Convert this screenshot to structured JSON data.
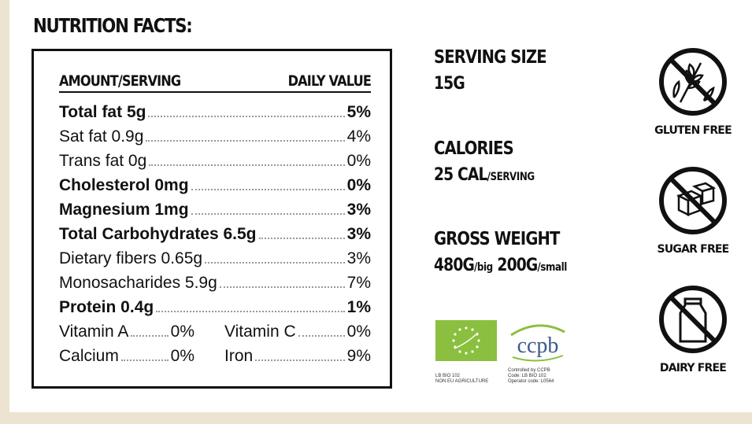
{
  "title": "NUTRITION FACTS:",
  "table": {
    "header_left": "AMOUNT/SERVING",
    "header_right": "DAILY VALUE",
    "rows": [
      {
        "label": "Total fat 5g",
        "value": "5%",
        "bold": true
      },
      {
        "label": "Sat fat 0.9g",
        "value": "4%",
        "bold": false
      },
      {
        "label": "Trans fat 0g",
        "value": "0%",
        "bold": false
      },
      {
        "label": "Cholesterol 0mg",
        "value": "0%",
        "bold": true
      },
      {
        "label": "Magnesium 1mg",
        "value": "3%",
        "bold": true
      },
      {
        "label": "Total Carbohydrates 6.5g",
        "value": "3%",
        "bold": true
      },
      {
        "label": "Dietary fibers 0.65g",
        "value": "3%",
        "bold": false
      },
      {
        "label": "Monosacharides 5.9g",
        "value": "7%",
        "bold": false
      },
      {
        "label": "Protein 0.4g",
        "value": "1%",
        "bold": true
      }
    ],
    "pairs": [
      [
        {
          "label": "Vitamin A",
          "value": "0%"
        },
        {
          "label": "Vitamin C",
          "value": "0%"
        }
      ],
      [
        {
          "label": "Calcium",
          "value": "0%"
        },
        {
          "label": "Iron",
          "value": "9%"
        }
      ]
    ]
  },
  "info": {
    "serving_size_label": "SERVING SIZE",
    "serving_size_value": "15G",
    "calories_label": "CALORIES",
    "calories_value": "25 CAL",
    "calories_unit": "/SERVING",
    "gross_weight_label": "GROSS WEIGHT",
    "gross_big": "480G",
    "gross_big_unit": "/big",
    "gross_small": "200G",
    "gross_small_unit": "/small"
  },
  "badges": [
    {
      "icon": "no-wheat-icon",
      "label": "GLUTEN FREE"
    },
    {
      "icon": "no-sugar-icon",
      "label": "SUGAR FREE"
    },
    {
      "icon": "no-milk-icon",
      "label": "DAIRY FREE"
    }
  ],
  "certifications": {
    "eu_text_1": "LB BIO 102",
    "eu_text_2": "NON EU AGRICULTURE",
    "ccpb_logo": "ccpb",
    "ccpb_text_1": "Controlled by CCPB",
    "ccpb_text_2": "Code: LB BIO 102",
    "ccpb_text_3": "Operator code: L0564"
  },
  "colors": {
    "background": "#ece4d1",
    "eu_leaf_green": "#8bbf3f",
    "ccpb_blue": "#3d5a8c"
  }
}
